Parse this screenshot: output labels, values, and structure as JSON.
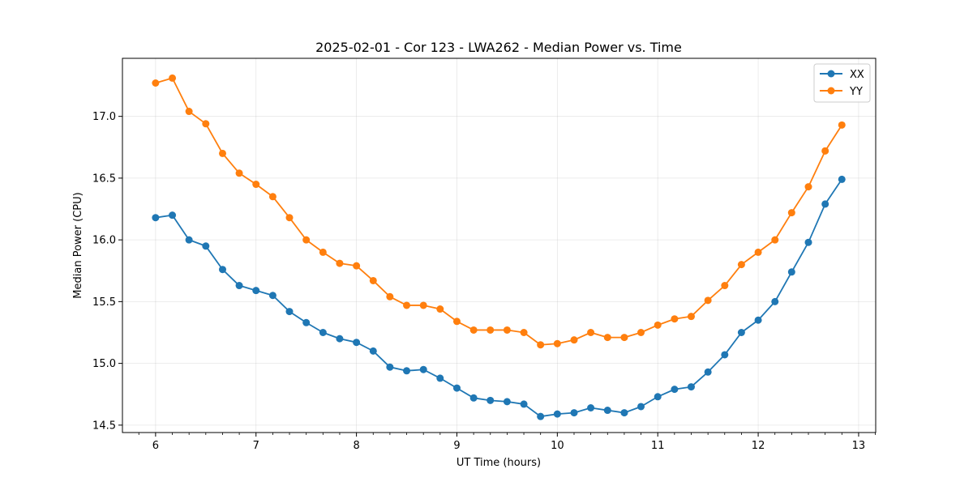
{
  "chart_data": {
    "type": "line",
    "title": "2025-02-01 - Cor 123 - LWA262 - Median Power vs. Time",
    "xlabel": "UT Time (hours)",
    "ylabel": "Median Power (CPU)",
    "xlim": [
      5.67,
      13.17
    ],
    "ylim": [
      14.44,
      17.47
    ],
    "xticks": [
      6,
      7,
      8,
      9,
      10,
      11,
      12,
      13
    ],
    "yticks": [
      14.5,
      15.0,
      15.5,
      16.0,
      16.5,
      17.0
    ],
    "xtick_labels": [
      "6",
      "7",
      "8",
      "9",
      "10",
      "11",
      "12",
      "13"
    ],
    "ytick_labels": [
      "14.5",
      "15.0",
      "15.5",
      "16.0",
      "16.5",
      "17.0"
    ],
    "grid": true,
    "legend_position": "top-right",
    "x": [
      6.0,
      6.167,
      6.333,
      6.5,
      6.667,
      6.833,
      7.0,
      7.167,
      7.333,
      7.5,
      7.667,
      7.833,
      8.0,
      8.167,
      8.333,
      8.5,
      8.667,
      8.833,
      9.0,
      9.167,
      9.333,
      9.5,
      9.667,
      9.833,
      10.0,
      10.167,
      10.333,
      10.5,
      10.667,
      10.833,
      11.0,
      11.167,
      11.333,
      11.5,
      11.667,
      11.833,
      12.0,
      12.167,
      12.333,
      12.5,
      12.667,
      12.833
    ],
    "series": [
      {
        "name": "XX",
        "color": "#1f77b4",
        "values": [
          16.18,
          16.2,
          16.0,
          15.95,
          15.76,
          15.63,
          15.59,
          15.55,
          15.42,
          15.33,
          15.25,
          15.2,
          15.17,
          15.1,
          14.97,
          14.94,
          14.95,
          14.88,
          14.8,
          14.72,
          14.7,
          14.69,
          14.67,
          14.57,
          14.59,
          14.6,
          14.64,
          14.62,
          14.6,
          14.65,
          14.73,
          14.79,
          14.81,
          14.93,
          15.07,
          15.25,
          15.35,
          15.5,
          15.74,
          15.98,
          16.29,
          16.49
        ]
      },
      {
        "name": "YY",
        "color": "#ff7f0e",
        "values": [
          17.27,
          17.31,
          17.04,
          16.94,
          16.7,
          16.54,
          16.45,
          16.35,
          16.18,
          16.0,
          15.9,
          15.81,
          15.79,
          15.67,
          15.54,
          15.47,
          15.47,
          15.44,
          15.34,
          15.27,
          15.27,
          15.27,
          15.25,
          15.15,
          15.16,
          15.19,
          15.25,
          15.21,
          15.21,
          15.25,
          15.31,
          15.36,
          15.38,
          15.51,
          15.63,
          15.8,
          15.9,
          16.0,
          16.22,
          16.43,
          16.72,
          16.93
        ]
      }
    ]
  }
}
